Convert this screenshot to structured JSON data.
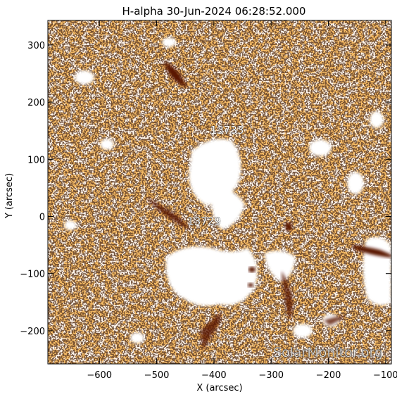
{
  "title": "H-alpha 30-Jun-2024 06:28:52.000",
  "axes": {
    "x": {
      "label": "X (arcsec)",
      "range": [
        -690,
        -90
      ],
      "ticks": [
        {
          "value": -600,
          "label": "−600"
        },
        {
          "value": -500,
          "label": "−500"
        },
        {
          "value": -400,
          "label": "−400"
        },
        {
          "value": -300,
          "label": "−300"
        },
        {
          "value": -200,
          "label": "−200"
        },
        {
          "value": -100,
          "label": "−100"
        }
      ]
    },
    "y": {
      "label": "Y (arcsec)",
      "range": [
        -258,
        343
      ],
      "ticks": [
        {
          "value": 300,
          "label": "300"
        },
        {
          "value": 200,
          "label": "200"
        },
        {
          "value": 100,
          "label": "100"
        },
        {
          "value": 0,
          "label": "0"
        },
        {
          "value": -100,
          "label": "−100"
        },
        {
          "value": -200,
          "label": "−200"
        }
      ]
    }
  },
  "regions": [
    {
      "number": "13733",
      "x": -377,
      "y": 145
    },
    {
      "number": "13729",
      "x": -417,
      "y": -15
    }
  ],
  "watermark": "SolarMonitor.org",
  "colors": {
    "plage_orange": "#ee7f22",
    "dark_filament": "#5a1404",
    "bright_white": "#ffffff",
    "background": "#ffffff"
  }
}
